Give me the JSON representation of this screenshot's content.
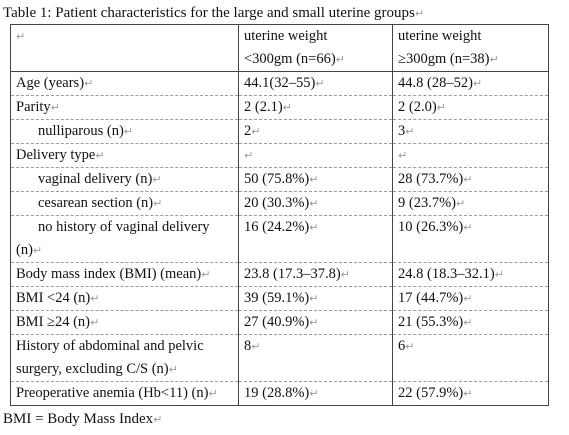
{
  "caption": "Table 1: Patient characteristics for the large and small uterine groups",
  "para_mark": "↵",
  "header": {
    "col1": "",
    "col2_line1": "uterine weight",
    "col2_line2": "<300gm (n=66)",
    "col3_line1": "uterine weight",
    "col3_line2": "≥300gm (n=38)"
  },
  "rows": [
    {
      "label": "Age (years)",
      "small": "44.1(32–55)",
      "large": "44.8 (28–52)"
    },
    {
      "label": "Parity",
      "small": "2 (2.1)",
      "large": "2 (2.0)"
    },
    {
      "label": "nulliparous (n)",
      "small": "2",
      "large": "3"
    },
    {
      "label": "Delivery type",
      "small": "",
      "large": ""
    },
    {
      "label": "vaginal delivery (n)",
      "small": "50 (75.8%)",
      "large": "28 (73.7%)"
    },
    {
      "label": "cesarean section (n)",
      "small": "20 (30.3%)",
      "large": "9 (23.7%)"
    },
    {
      "label_line1": "no history of vaginal delivery",
      "label_line2": "(n)",
      "small": "16 (24.2%)",
      "large": "10 (26.3%)"
    },
    {
      "label": "Body mass index (BMI) (mean)",
      "small": "23.8 (17.3–37.8)",
      "large": "24.8 (18.3–32.1)"
    },
    {
      "label": "BMI <24 (n)",
      "small": "39 (59.1%)",
      "large": "17 (44.7%)"
    },
    {
      "label": "BMI ≥24 (n)",
      "small": "27 (40.9%)",
      "large": "21 (55.3%)"
    },
    {
      "label_line1": "History of abdominal and pelvic",
      "label_line2": "surgery, excluding C/S (n)",
      "small": "8",
      "large": "6"
    },
    {
      "label": "Preoperative anemia (Hb<11) (n)",
      "small": "19 (28.8%)",
      "large": "22 (57.9%)"
    }
  ],
  "footnote": "BMI = Body Mass Index"
}
